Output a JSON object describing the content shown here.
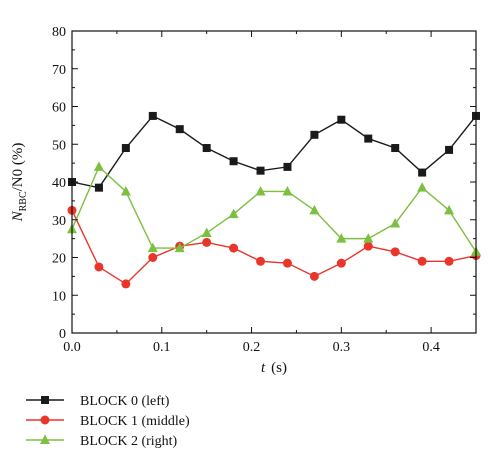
{
  "chart_data": {
    "type": "line",
    "xlabel_symbol": "t",
    "xlabel_unit": "(s)",
    "ylabel_main": "N",
    "ylabel_sub": "RBC",
    "ylabel_rest": "/N0 (%)",
    "xlim": [
      0,
      0.45
    ],
    "ylim": [
      0,
      80
    ],
    "xticks": [
      0.0,
      0.1,
      0.2,
      0.3,
      0.4
    ],
    "xtick_labels": [
      "0.0",
      "0.1",
      "0.2",
      "0.3",
      "0.4"
    ],
    "yticks": [
      0,
      10,
      20,
      30,
      40,
      50,
      60,
      70,
      80
    ],
    "ytick_labels": [
      "0",
      "10",
      "20",
      "30",
      "40",
      "50",
      "60",
      "70",
      "80"
    ],
    "legend_position": "below",
    "x": [
      0.0,
      0.03,
      0.06,
      0.09,
      0.12,
      0.15,
      0.18,
      0.21,
      0.24,
      0.27,
      0.3,
      0.33,
      0.36,
      0.39,
      0.42,
      0.45
    ],
    "series": [
      {
        "name": "BLOCK 0 (left)",
        "color": "#1a1a1a",
        "marker": "square",
        "values": [
          40,
          38.5,
          49,
          57.5,
          54,
          49,
          45.5,
          43,
          44,
          52.5,
          56.5,
          51.5,
          49,
          42.5,
          48.5,
          57.5
        ]
      },
      {
        "name": "BLOCK 1 (middle)",
        "color": "#e8362a",
        "marker": "circle",
        "values": [
          32.5,
          17.5,
          13,
          20,
          23,
          24,
          22.5,
          19,
          18.5,
          15,
          18.5,
          23,
          21.5,
          19,
          19,
          20.5
        ]
      },
      {
        "name": "BLOCK 2 (right)",
        "color": "#7dbf3f",
        "marker": "triangle",
        "values": [
          27.5,
          44,
          37.5,
          22.5,
          22.5,
          26.5,
          31.5,
          37.5,
          37.5,
          32.5,
          25,
          25,
          29,
          38.5,
          32.5,
          21.5
        ]
      }
    ]
  }
}
